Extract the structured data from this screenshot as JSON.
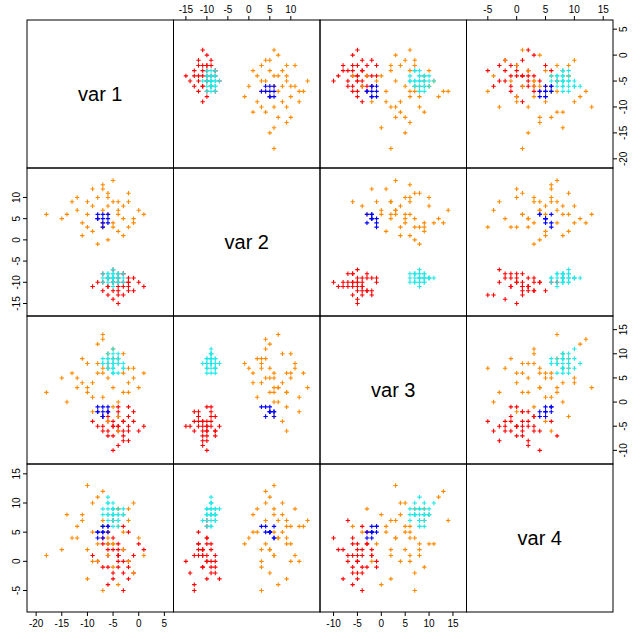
{
  "chart_data": {
    "type": "scatter_matrix",
    "marker": "plus",
    "tick_labels": true,
    "variables": [
      {
        "label": "var 1",
        "lim": [
          -21,
          6
        ],
        "ticks": [
          -20,
          -15,
          -10,
          -5,
          0,
          5
        ]
      },
      {
        "label": "var 2",
        "lim": [
          -17,
          16
        ],
        "ticks": [
          -15,
          -10,
          -5,
          0,
          5,
          10
        ]
      },
      {
        "label": "var 3",
        "lim": [
          -12,
          17
        ],
        "ticks": [
          -10,
          -5,
          0,
          5,
          10,
          15
        ]
      },
      {
        "label": "var 4",
        "lim": [
          -8,
          16
        ],
        "ticks": [
          -5,
          0,
          5,
          10,
          15
        ]
      }
    ],
    "series": [
      {
        "color": "#ff0000",
        "values": [
          [
            -4,
            -10,
            -5,
            1
          ],
          [
            -6,
            -9,
            -3,
            3
          ],
          [
            -2,
            -11,
            -6,
            -1
          ],
          [
            -5,
            -12,
            -4,
            2
          ],
          [
            -3,
            -8,
            -7,
            0
          ],
          [
            -7,
            -10,
            -6,
            4
          ],
          [
            -1,
            -9,
            -4,
            -2
          ],
          [
            -4,
            -13,
            -2,
            1
          ],
          [
            -5,
            -7,
            -5,
            -3
          ],
          [
            -3,
            -11,
            -8,
            2
          ],
          [
            -8,
            -10,
            -5,
            0
          ],
          [
            -2,
            -12,
            -3,
            5
          ],
          [
            -6,
            -11,
            -7,
            1
          ],
          [
            -4,
            -9,
            -1,
            -1
          ],
          [
            0,
            -10,
            -6,
            3
          ],
          [
            -5,
            -14,
            -5,
            -2
          ],
          [
            -3,
            -10,
            -4,
            6
          ],
          [
            -7,
            -8,
            -3,
            -1
          ],
          [
            -4,
            -11,
            -9,
            2
          ],
          [
            -2,
            -9,
            -5,
            0
          ],
          [
            -6,
            -13,
            -6,
            -4
          ],
          [
            -1,
            -12,
            -2,
            1
          ],
          [
            -5,
            -10,
            -7,
            7
          ],
          [
            -3,
            -8,
            -6,
            -2
          ],
          [
            -4,
            -12,
            -3,
            3
          ],
          [
            -9,
            -11,
            -4,
            1
          ],
          [
            -2,
            -10,
            -8,
            -3
          ],
          [
            -6,
            -9,
            -2,
            2
          ],
          [
            -4,
            -15,
            -5,
            0
          ],
          [
            1,
            -11,
            -5,
            2
          ],
          [
            -5,
            -10,
            -10,
            4
          ],
          [
            -3,
            -13,
            -4,
            -5
          ],
          [
            -7,
            -12,
            -5,
            3
          ],
          [
            -4,
            -8,
            -6,
            1
          ],
          [
            -2,
            -10,
            -1,
            0
          ],
          [
            -6,
            -11,
            -4,
            -1
          ]
        ]
      },
      {
        "color": "#ff8a00",
        "values": [
          [
            -6,
            6,
            5,
            5
          ],
          [
            -10,
            3,
            8,
            2
          ],
          [
            -2,
            9,
            2,
            7
          ],
          [
            -8,
            10,
            6,
            0
          ],
          [
            -4,
            2,
            9,
            9
          ],
          [
            -12,
            7,
            3,
            4
          ],
          [
            -1,
            5,
            7,
            -2
          ],
          [
            -7,
            12,
            1,
            6
          ],
          [
            -5,
            4,
            11,
            3
          ],
          [
            -9,
            8,
            4,
            10
          ],
          [
            -3,
            1,
            6,
            5
          ],
          [
            -14,
            6,
            0,
            8
          ],
          [
            -6,
            11,
            8,
            1
          ],
          [
            0,
            7,
            3,
            4
          ],
          [
            -11,
            4,
            9,
            7
          ],
          [
            -5,
            9,
            -1,
            3
          ],
          [
            -8,
            5,
            12,
            11
          ],
          [
            -2,
            3,
            4,
            0
          ],
          [
            -7,
            13,
            6,
            6
          ],
          [
            -4,
            6,
            -3,
            9
          ],
          [
            -10,
            9,
            2,
            -3
          ],
          [
            -6,
            0,
            7,
            4
          ],
          [
            -15,
            5,
            5,
            2
          ],
          [
            -3,
            8,
            10,
            8
          ],
          [
            -9,
            2,
            1,
            5
          ],
          [
            -5,
            14,
            3,
            7
          ],
          [
            1,
            6,
            6,
            1
          ],
          [
            -7,
            4,
            13,
            12
          ],
          [
            -12,
            10,
            5,
            6
          ],
          [
            -4,
            7,
            0,
            -4
          ],
          [
            -8,
            -1,
            8,
            3
          ],
          [
            -6,
            8,
            -4,
            5
          ],
          [
            -2,
            11,
            7,
            9
          ],
          [
            -10,
            6,
            3,
            13
          ],
          [
            -5,
            3,
            9,
            -1
          ],
          [
            -13,
            9,
            6,
            4
          ],
          [
            -3,
            5,
            2,
            2
          ],
          [
            -7,
            7,
            14,
            7
          ],
          [
            -9,
            12,
            -2,
            0
          ],
          [
            -1,
            4,
            5,
            10
          ],
          [
            -6,
            10,
            10,
            3
          ],
          [
            -11,
            1,
            4,
            8
          ],
          [
            -4,
            9,
            -6,
            6
          ],
          [
            -18,
            6,
            2,
            1
          ],
          [
            -7,
            3,
            7,
            -5
          ]
        ]
      },
      {
        "color": "#22e8e8",
        "values": [
          [
            -5,
            -9,
            8,
            8
          ],
          [
            -6,
            -8,
            7,
            9
          ],
          [
            -4,
            -10,
            9,
            7
          ],
          [
            -5,
            -9,
            10,
            8
          ],
          [
            -7,
            -9,
            8,
            6
          ],
          [
            -3,
            -8,
            7,
            8
          ],
          [
            -5,
            -10,
            6,
            9
          ],
          [
            -6,
            -9,
            9,
            10
          ],
          [
            -4,
            -8,
            8,
            7
          ],
          [
            -5,
            -8,
            7,
            8
          ],
          [
            -6,
            -10,
            9,
            8
          ],
          [
            -4,
            -9,
            10,
            9
          ],
          [
            -5,
            -11,
            8,
            7
          ],
          [
            -7,
            -8,
            9,
            8
          ],
          [
            -3,
            -9,
            8,
            9
          ],
          [
            -5,
            -9,
            6,
            7
          ],
          [
            -6,
            -9,
            7,
            10
          ],
          [
            -4,
            -10,
            8,
            6
          ],
          [
            -5,
            -8,
            9,
            9
          ],
          [
            -6,
            -9,
            10,
            8
          ],
          [
            -5,
            -10,
            7,
            8
          ],
          [
            -4,
            -9,
            9,
            8
          ],
          [
            -5,
            -7,
            8,
            9
          ],
          [
            -6,
            -8,
            8,
            7
          ],
          [
            -3,
            -10,
            7,
            8
          ],
          [
            -5,
            -9,
            11,
            10
          ],
          [
            -7,
            -10,
            8,
            9
          ],
          [
            -4,
            -8,
            6,
            8
          ],
          [
            -5,
            -9,
            9,
            6
          ],
          [
            -6,
            -9,
            8,
            11
          ]
        ]
      },
      {
        "color": "#0000ff",
        "values": [
          [
            -7,
            5,
            -2,
            5
          ],
          [
            -6,
            4,
            -1,
            6
          ],
          [
            -8,
            6,
            -2,
            4
          ],
          [
            -7,
            4,
            -3,
            5
          ],
          [
            -6,
            6,
            -2,
            6
          ],
          [
            -8,
            5,
            -1,
            5
          ],
          [
            -7,
            6,
            -3,
            4
          ],
          [
            -6,
            5,
            -2,
            5
          ],
          [
            -7,
            3,
            -1,
            6
          ],
          [
            -8,
            5,
            -2,
            5
          ]
        ]
      }
    ]
  }
}
